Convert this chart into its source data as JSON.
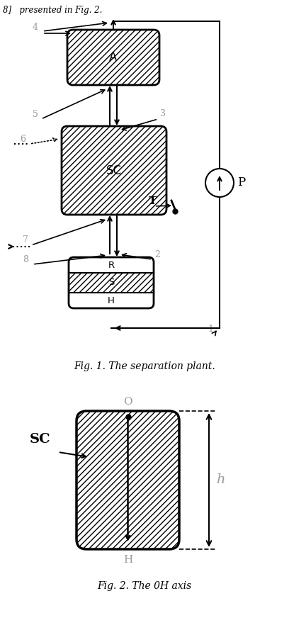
{
  "bg_color": "#ffffff",
  "line_color": "#000000",
  "gray_color": "#999999",
  "fig1_caption": "Fig. 1. The separation plant.",
  "fig2_caption": "Fig. 2. The 0H axis",
  "label_A": "A",
  "label_SC": "SC",
  "label_SC2": "SC",
  "label_R": "R",
  "label_S": "S",
  "label_H_box": "H",
  "label_H_axis": "H",
  "label_O": "O",
  "label_h": "h",
  "label_P": "P",
  "label_T": "T"
}
